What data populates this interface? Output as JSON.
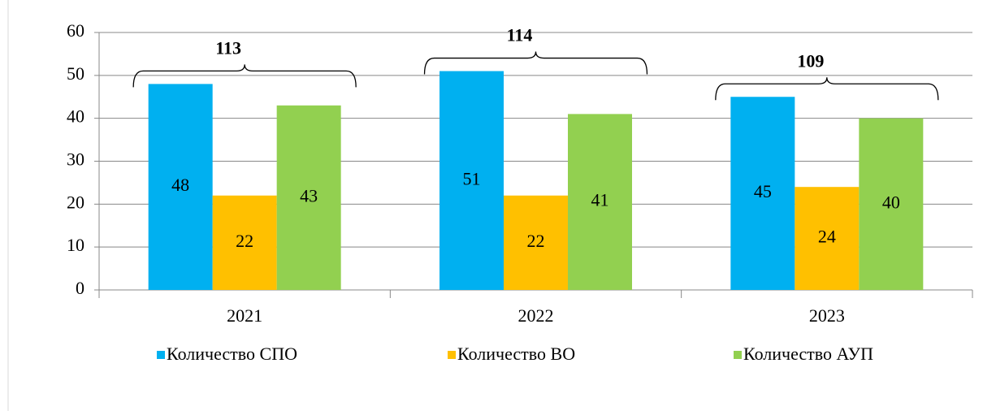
{
  "chart_data": {
    "type": "bar",
    "categories": [
      "2021",
      "2022",
      "2023"
    ],
    "series": [
      {
        "name": "Количество СПО",
        "color": "#00b0f0",
        "values": [
          48,
          51,
          45
        ]
      },
      {
        "name": "Количество ВО",
        "color": "#ffc000",
        "values": [
          22,
          22,
          24
        ]
      },
      {
        "name": "Количество АУП",
        "color": "#92d050",
        "values": [
          43,
          41,
          40
        ]
      }
    ],
    "group_totals": [
      113,
      114,
      109
    ],
    "ylim": [
      0,
      60
    ],
    "yticks": [
      0,
      10,
      20,
      30,
      40,
      50,
      60
    ],
    "grid": true,
    "legend": "bottom"
  }
}
